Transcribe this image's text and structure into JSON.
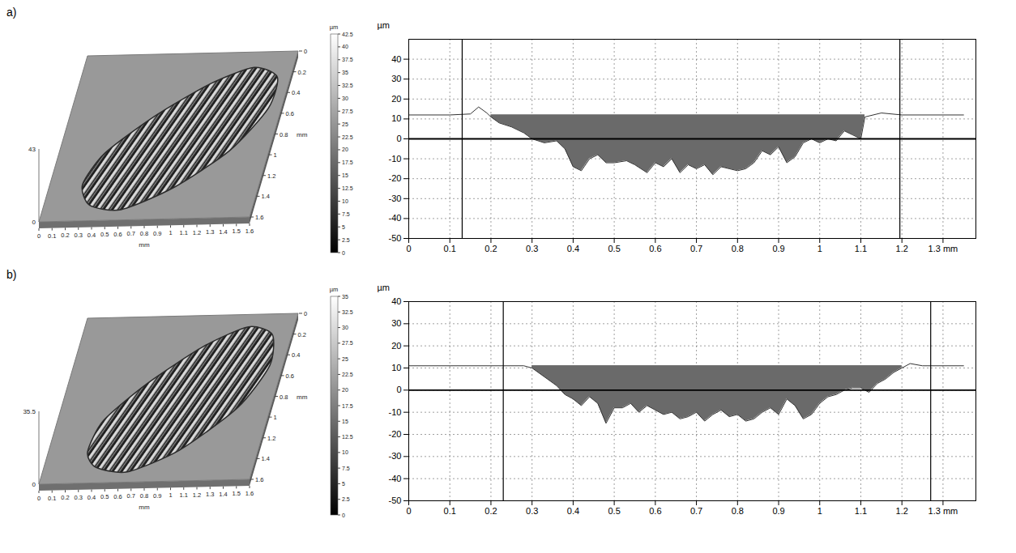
{
  "chart_data": [
    {
      "type": "surface",
      "panel": "a)",
      "xlabel": "mm",
      "ylabel": "mm",
      "xlim": [
        0,
        1.6
      ],
      "xticks": [
        0,
        0.1,
        0.2,
        0.3,
        0.4,
        0.5,
        0.6,
        0.7,
        0.8,
        0.9,
        1,
        1.1,
        1.2,
        1.3,
        1.4,
        1.5,
        1.6
      ],
      "ylim": [
        0,
        1.6
      ],
      "yticks": [
        0,
        0.2,
        0.4,
        0.6,
        0.8,
        1,
        1.2,
        1.4,
        1.6
      ],
      "zlim": [
        0,
        43
      ],
      "zticks": [
        0,
        43
      ],
      "colorbar": {
        "label": "µm",
        "range": [
          0,
          42.5
        ],
        "ticks": [
          0,
          2.5,
          5,
          7.5,
          10,
          12.5,
          15,
          17.5,
          20,
          22.5,
          25,
          27.5,
          30,
          32.5,
          35,
          37.5,
          40,
          42.5
        ]
      },
      "scar": {
        "x": [
          0.35,
          0.6,
          0.95,
          1.3,
          1.5,
          1.5,
          1.3,
          1.0,
          0.65,
          0.35,
          0.25
        ],
        "y": [
          1.45,
          1.5,
          1.3,
          0.95,
          0.55,
          0.25,
          0.15,
          0.3,
          0.6,
          0.95,
          1.25
        ]
      }
    },
    {
      "type": "area",
      "ylabel": "µm",
      "xlim": [
        0,
        1.38
      ],
      "xticks": [
        0,
        0.1,
        0.2,
        0.3,
        0.4,
        0.5,
        0.6,
        0.7,
        0.8,
        0.9,
        1,
        1.1,
        1.2,
        {
          "value": 1.3,
          "label": "1.3 mm"
        }
      ],
      "ylim": [
        -50,
        50
      ],
      "yticks": [
        -50,
        -40,
        -30,
        -20,
        -10,
        0,
        10,
        20,
        30,
        40
      ],
      "grid": true,
      "x": [
        0,
        0.1,
        0.15,
        0.17,
        0.19,
        0.2,
        0.22,
        0.25,
        0.28,
        0.3,
        0.33,
        0.36,
        0.38,
        0.4,
        0.42,
        0.44,
        0.46,
        0.48,
        0.5,
        0.53,
        0.55,
        0.58,
        0.6,
        0.62,
        0.64,
        0.66,
        0.68,
        0.7,
        0.72,
        0.74,
        0.76,
        0.78,
        0.8,
        0.82,
        0.84,
        0.86,
        0.88,
        0.9,
        0.92,
        0.94,
        0.96,
        0.98,
        1,
        1.02,
        1.04,
        1.06,
        1.08,
        1.1,
        1.11,
        1.15,
        1.2,
        1.35
      ],
      "values": [
        12,
        12,
        12.5,
        16,
        13,
        11,
        8,
        6,
        3,
        0,
        -2,
        -1,
        -5,
        -14,
        -16,
        -10,
        -8,
        -12,
        -12,
        -11,
        -13,
        -17,
        -12,
        -14,
        -10,
        -17,
        -13,
        -15,
        -13,
        -18,
        -14,
        -15,
        -16,
        -15,
        -12,
        -6,
        -8,
        -4,
        -12,
        -9,
        -2,
        0,
        -2,
        0,
        -1,
        4,
        2,
        0,
        11,
        13,
        12,
        12
      ],
      "fill_level": 12,
      "fill_range": [
        0.2,
        1.11
      ],
      "reference_line": 0,
      "cursors": [
        0.13,
        1.195
      ],
      "color": "#6a6a6a"
    },
    {
      "type": "surface",
      "panel": "b)",
      "xlabel": "mm",
      "ylabel": "mm",
      "xlim": [
        0,
        1.6
      ],
      "xticks": [
        0,
        0.1,
        0.2,
        0.3,
        0.4,
        0.5,
        0.6,
        0.7,
        0.8,
        0.9,
        1,
        1.1,
        1.2,
        1.3,
        1.4,
        1.5,
        1.6
      ],
      "ylim": [
        0,
        1.6
      ],
      "yticks": [
        0,
        0.2,
        0.4,
        0.6,
        0.8,
        1,
        1.2,
        1.4,
        1.6
      ],
      "zlim": [
        0,
        35.5
      ],
      "zticks": [
        0,
        35.5
      ],
      "colorbar": {
        "label": "µm",
        "range": [
          0,
          35
        ],
        "ticks": [
          0,
          2.5,
          5,
          7.5,
          10,
          12.5,
          15,
          17.5,
          20,
          22.5,
          25,
          27.5,
          30,
          32.5,
          35
        ]
      },
      "scar": {
        "x": [
          0.4,
          0.65,
          1.0,
          1.35,
          1.5,
          1.45,
          1.25,
          0.95,
          0.6,
          0.35,
          0.3
        ],
        "y": [
          1.45,
          1.5,
          1.3,
          0.9,
          0.5,
          0.2,
          0.12,
          0.3,
          0.65,
          1.0,
          1.3
        ]
      }
    },
    {
      "type": "area",
      "ylabel": "µm",
      "xlim": [
        0,
        1.38
      ],
      "xticks": [
        0,
        0.1,
        0.2,
        0.3,
        0.4,
        0.5,
        0.6,
        0.7,
        0.8,
        0.9,
        1,
        1.1,
        1.2,
        {
          "value": 1.3,
          "label": "1.3 mm"
        }
      ],
      "ylim": [
        -50,
        40
      ],
      "yticks": [
        -50,
        -40,
        -30,
        -20,
        -10,
        0,
        10,
        20,
        30,
        40
      ],
      "grid": true,
      "x": [
        0,
        0.1,
        0.2,
        0.28,
        0.3,
        0.33,
        0.36,
        0.38,
        0.4,
        0.42,
        0.44,
        0.46,
        0.48,
        0.5,
        0.52,
        0.54,
        0.56,
        0.58,
        0.6,
        0.62,
        0.64,
        0.66,
        0.68,
        0.7,
        0.72,
        0.74,
        0.76,
        0.78,
        0.8,
        0.82,
        0.84,
        0.86,
        0.88,
        0.9,
        0.92,
        0.94,
        0.96,
        0.98,
        1,
        1.02,
        1.04,
        1.06,
        1.08,
        1.1,
        1.12,
        1.14,
        1.16,
        1.18,
        1.2,
        1.22,
        1.25,
        1.35
      ],
      "values": [
        11,
        11,
        11,
        11,
        10,
        6,
        2,
        -2,
        -4,
        -7,
        -3,
        -6,
        -15,
        -8,
        -8,
        -6,
        -10,
        -7,
        -9,
        -11,
        -10,
        -13,
        -12,
        -10,
        -14,
        -11,
        -9,
        -12,
        -11,
        -14,
        -13,
        -10,
        -8,
        -11,
        -4,
        -7,
        -13,
        -11,
        -6,
        -3,
        -2,
        0,
        1,
        1,
        -1,
        3,
        5,
        8,
        10,
        12,
        11,
        11
      ],
      "fill_level": 11,
      "fill_range": [
        0.3,
        1.2
      ],
      "reference_line": 0,
      "cursors": [
        0.23,
        1.27
      ],
      "color": "#6a6a6a"
    }
  ]
}
